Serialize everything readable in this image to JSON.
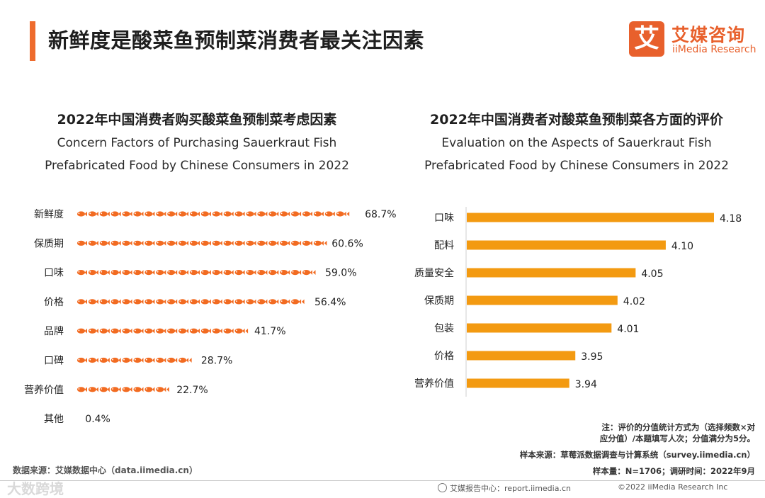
{
  "header": {
    "title": "新鲜度是酸菜鱼预制菜消费者最关注因素",
    "logo_icon": "艾",
    "logo_cn": "艾媒咨询",
    "logo_en": "iiMedia Research",
    "brand_color": "#e8602c"
  },
  "left_chart": {
    "title_cn": "2022年中国消费者购买酸菜鱼预制菜考虑因素",
    "title_en_1": "Concern Factors of Purchasing Sauerkraut Fish",
    "title_en_2": "Prefabricated Food by Chinese Consumers in 2022"
  },
  "right_chart": {
    "title_cn": "2022年中国消费者对酸菜鱼预制菜各方面的评价",
    "title_en_1": "Evaluation on the Aspects of Sauerkraut Fish",
    "title_en_2": "Prefabricated Food by Chinese Consumers in 2022"
  },
  "chart_data": [
    {
      "type": "bar",
      "orientation": "horizontal",
      "marker": "fish-icon",
      "title": "2022年中国消费者购买酸菜鱼预制菜考虑因素",
      "categories": [
        "新鲜度",
        "保质期",
        "口味",
        "价格",
        "品牌",
        "口碑",
        "营养价值",
        "其他"
      ],
      "values": [
        68.7,
        60.6,
        59.0,
        56.4,
        41.7,
        28.7,
        22.7,
        0.4
      ],
      "labels": [
        "68.7%",
        "60.6%",
        "59.0%",
        "56.4%",
        "41.7%",
        "28.7%",
        "22.7%",
        "0.4%"
      ],
      "unit": "%",
      "xlim": [
        0,
        70
      ],
      "color": "#f26b21"
    },
    {
      "type": "bar",
      "orientation": "horizontal",
      "title": "2022年中国消费者对酸菜鱼预制菜各方面的评价",
      "categories": [
        "口味",
        "配料",
        "质量安全",
        "保质期",
        "包装",
        "价格",
        "营养价值"
      ],
      "values": [
        4.18,
        4.1,
        4.05,
        4.02,
        4.01,
        3.95,
        3.94
      ],
      "labels": [
        "4.18",
        "4.10",
        "4.05",
        "4.02",
        "4.01",
        "3.95",
        "3.94"
      ],
      "xlim": [
        3.77,
        4.18
      ],
      "color": "#f39a11"
    }
  ],
  "notes": {
    "note_line1": "注：评价的分值统计方式为（选择频数×对",
    "note_line2": "应分值）/本题填写人次；分值满分为5分。",
    "sample_source": "样本来源：草莓派数据调查与计算系统（survey.iimedia.cn）",
    "sample_size": "样本量：N=1706；调研时间：2022年9月"
  },
  "footer": {
    "data_source": "数据来源：艾媒数据中心（data.iimedia.cn）",
    "report_center": "艾媒报告中心：report.iimedia.cn",
    "copyright": "©2022  iiMedia Research  Inc",
    "watermark": "大数跨境"
  }
}
